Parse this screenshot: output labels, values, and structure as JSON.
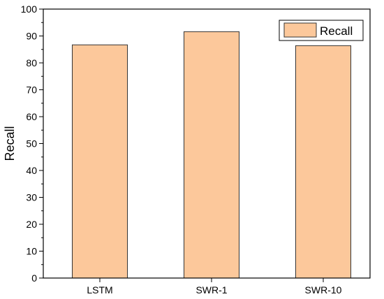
{
  "chart_data": {
    "type": "bar",
    "categories": [
      "LSTM",
      "SWR-1",
      "SWR-10"
    ],
    "series": [
      {
        "name": "Recall",
        "values": [
          86.7,
          91.6,
          86.4
        ]
      }
    ],
    "title": "",
    "xlabel": "",
    "ylabel": "Recall",
    "ylim": [
      0,
      100
    ],
    "yticks": [
      "0",
      "10",
      "20",
      "30",
      "40",
      "50",
      "60",
      "70",
      "80",
      "90",
      "100"
    ],
    "grid": false,
    "legend_position": "top-right",
    "bar_color": "#FCC89B",
    "bar_edge_color": "#333333"
  }
}
